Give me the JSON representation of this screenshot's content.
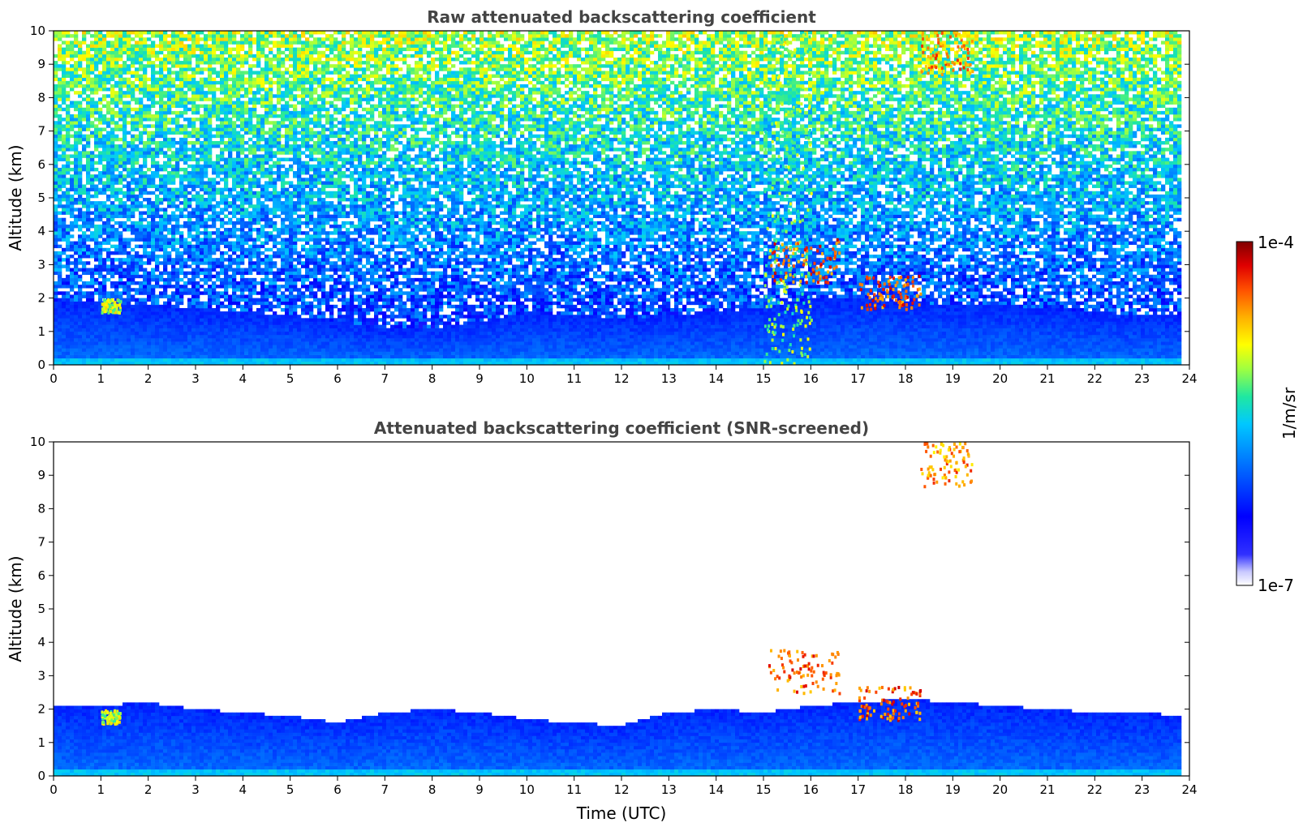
{
  "chart_data": [
    {
      "type": "heatmap",
      "title": "Raw attenuated backscattering coefficient",
      "xlabel": "",
      "ylabel": "Altitude (km)",
      "xlim": [
        0,
        24
      ],
      "ylim": [
        0,
        10
      ],
      "x_ticks": [
        0,
        1,
        2,
        3,
        4,
        5,
        6,
        7,
        8,
        9,
        10,
        11,
        12,
        13,
        14,
        15,
        16,
        17,
        18,
        19,
        20,
        21,
        22,
        23,
        24
      ],
      "y_ticks": [
        0,
        1,
        2,
        3,
        4,
        5,
        6,
        7,
        8,
        9,
        10
      ],
      "boundary_layer_top_km": {
        "time": [
          0,
          1,
          2,
          3,
          4,
          5,
          6,
          7,
          8,
          9,
          10,
          11,
          12,
          13,
          14,
          15,
          16,
          17,
          18,
          19,
          20,
          21,
          22,
          23,
          23.8
        ],
        "height": [
          1.9,
          1.9,
          1.8,
          1.7,
          1.6,
          1.5,
          1.3,
          1.1,
          1.1,
          1.3,
          1.6,
          1.5,
          1.4,
          1.5,
          1.6,
          1.7,
          2.0,
          2.0,
          1.9,
          1.8,
          1.8,
          1.7,
          1.6,
          1.5,
          1.5
        ]
      },
      "features": [
        {
          "type": "cloud",
          "time": [
            15.1,
            16.6
          ],
          "altitude_km": [
            2.5,
            3.8
          ],
          "level": 0.85
        },
        {
          "type": "cloud",
          "time": [
            17.0,
            18.3
          ],
          "altitude_km": [
            1.7,
            2.7
          ],
          "level": 0.85
        },
        {
          "type": "cirrus",
          "time": [
            18.3,
            19.4
          ],
          "altitude_km": [
            8.7,
            10
          ],
          "level": 0.8
        },
        {
          "type": "aerosol-layer",
          "time": [
            1.0,
            1.4
          ],
          "altitude_km": [
            1.6,
            2.0
          ],
          "level": 0.65
        },
        {
          "type": "noisy-column",
          "time": [
            15.0,
            16.0
          ],
          "altitude_km": [
            0,
            10
          ],
          "level": 0.6
        }
      ]
    },
    {
      "type": "heatmap",
      "title": "Attenuated backscattering coefficient (SNR-screened)",
      "xlabel": "Time (UTC)",
      "ylabel": "Altitude (km)",
      "xlim": [
        0,
        24
      ],
      "ylim": [
        0,
        10
      ],
      "x_ticks": [
        0,
        1,
        2,
        3,
        4,
        5,
        6,
        7,
        8,
        9,
        10,
        11,
        12,
        13,
        14,
        15,
        16,
        17,
        18,
        19,
        20,
        21,
        22,
        23,
        24
      ],
      "y_ticks": [
        0,
        1,
        2,
        3,
        4,
        5,
        6,
        7,
        8,
        9,
        10
      ],
      "boundary_layer_top_km": {
        "time": [
          0,
          1,
          2,
          3,
          4,
          5,
          6,
          7,
          8,
          9,
          10,
          11,
          12,
          13,
          14,
          15,
          16,
          17,
          18,
          19,
          20,
          21,
          22,
          23,
          23.8
        ],
        "height": [
          2.1,
          2.1,
          2.2,
          2.0,
          1.9,
          1.8,
          1.6,
          1.9,
          2.0,
          1.9,
          1.7,
          1.6,
          1.5,
          1.9,
          2.0,
          1.9,
          2.1,
          2.2,
          2.3,
          2.2,
          2.1,
          2.0,
          1.9,
          1.9,
          1.8
        ]
      },
      "features": [
        {
          "type": "cloud",
          "time": [
            15.1,
            16.6
          ],
          "altitude_km": [
            2.5,
            3.8
          ],
          "level": 0.85
        },
        {
          "type": "cloud",
          "time": [
            17.0,
            18.3
          ],
          "altitude_km": [
            1.7,
            2.7
          ],
          "level": 0.85
        },
        {
          "type": "cirrus",
          "time": [
            18.3,
            19.4
          ],
          "altitude_km": [
            8.7,
            10
          ],
          "level": 0.8
        },
        {
          "type": "aerosol-layer",
          "time": [
            1.0,
            1.4
          ],
          "altitude_km": [
            1.6,
            2.0
          ],
          "level": 0.65
        }
      ]
    }
  ],
  "colorbar": {
    "label": "1/m/sr",
    "min_label": "1e-7",
    "max_label": "1e-4",
    "colors": [
      "#ffffff",
      "#c8c8ff",
      "#6b6bff",
      "#0000ff",
      "#0040ff",
      "#0080ff",
      "#00c0ff",
      "#00e0c0",
      "#40ff80",
      "#a0ff40",
      "#ffff00",
      "#ffc000",
      "#ff8000",
      "#ff2000",
      "#c00000",
      "#800000"
    ]
  }
}
